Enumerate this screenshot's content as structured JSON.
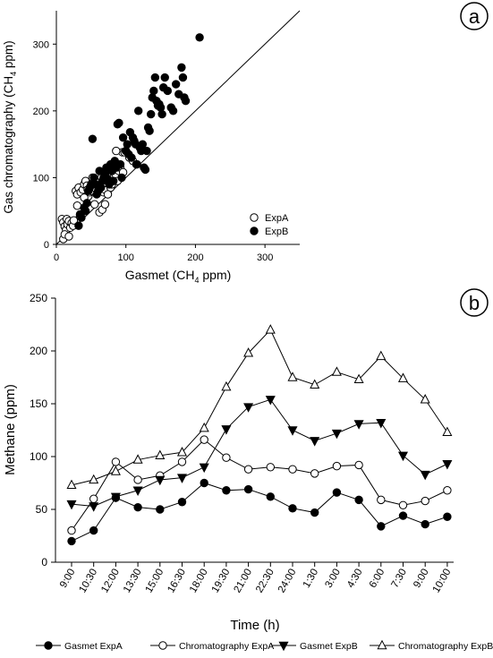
{
  "chart_data": [
    {
      "type": "scatter",
      "panel_label": "a",
      "xlabel": "Gasmet (CH",
      "xlabel_sub": "4",
      "xlabel_end": " ppm)",
      "ylabel": "Gas chromatography (CH",
      "ylabel_sub": "4",
      "ylabel_end": " ppm)",
      "xlim": [
        0,
        350
      ],
      "ylim": [
        0,
        350
      ],
      "x_ticks": [
        0,
        100,
        200,
        300
      ],
      "y_ticks": [
        0,
        100,
        200,
        300
      ],
      "reference_line": [
        [
          0,
          0
        ],
        [
          350,
          350
        ]
      ],
      "legend_position": "bottom-right",
      "series": [
        {
          "name": "ExpA",
          "marker": "open-circle",
          "points": [
            [
              8,
              38
            ],
            [
              10,
              33
            ],
            [
              12,
              27
            ],
            [
              14,
              22
            ],
            [
              15,
              38
            ],
            [
              16,
              30
            ],
            [
              18,
              35
            ],
            [
              20,
              25
            ],
            [
              22,
              32
            ],
            [
              24,
              28
            ],
            [
              25,
              36
            ],
            [
              10,
              8
            ],
            [
              12,
              15
            ],
            [
              18,
              12
            ],
            [
              28,
              80
            ],
            [
              30,
              75
            ],
            [
              32,
              85
            ],
            [
              35,
              78
            ],
            [
              38,
              82
            ],
            [
              40,
              90
            ],
            [
              42,
              95
            ],
            [
              44,
              88
            ],
            [
              46,
              72
            ],
            [
              48,
              78
            ],
            [
              50,
              80
            ],
            [
              52,
              100
            ],
            [
              55,
              85
            ],
            [
              58,
              92
            ],
            [
              60,
              88
            ],
            [
              62,
              95
            ],
            [
              65,
              100
            ],
            [
              68,
              78
            ],
            [
              70,
              82
            ],
            [
              72,
              92
            ],
            [
              75,
              98
            ],
            [
              78,
              85
            ],
            [
              80,
              90
            ],
            [
              82,
              100
            ],
            [
              85,
              105
            ],
            [
              88,
              95
            ],
            [
              90,
              110
            ],
            [
              92,
              115
            ],
            [
              95,
              138
            ],
            [
              98,
              138
            ],
            [
              100,
              140
            ],
            [
              105,
              130
            ],
            [
              110,
              125
            ],
            [
              115,
              120
            ],
            [
              30,
              58
            ],
            [
              34,
              42
            ],
            [
              62,
              48
            ],
            [
              66,
              52
            ],
            [
              70,
              60
            ],
            [
              74,
              75
            ],
            [
              86,
              140
            ],
            [
              96,
              108
            ],
            [
              40,
              70
            ],
            [
              55,
              60
            ],
            [
              45,
              82
            ]
          ]
        },
        {
          "name": "ExpB",
          "marker": "filled-circle",
          "points": [
            [
              32,
              28
            ],
            [
              34,
              45
            ],
            [
              36,
              40
            ],
            [
              40,
              55
            ],
            [
              42,
              50
            ],
            [
              44,
              62
            ],
            [
              46,
              80
            ],
            [
              48,
              85
            ],
            [
              50,
              90
            ],
            [
              52,
              158
            ],
            [
              54,
              100
            ],
            [
              56,
              90
            ],
            [
              58,
              75
            ],
            [
              60,
              80
            ],
            [
              62,
              110
            ],
            [
              64,
              85
            ],
            [
              66,
              95
            ],
            [
              68,
              100
            ],
            [
              70,
              105
            ],
            [
              72,
              115
            ],
            [
              74,
              98
            ],
            [
              76,
              90
            ],
            [
              78,
              120
            ],
            [
              80,
              110
            ],
            [
              82,
              95
            ],
            [
              84,
              125
            ],
            [
              86,
              115
            ],
            [
              88,
              180
            ],
            [
              90,
              182
            ],
            [
              92,
              120
            ],
            [
              94,
              100
            ],
            [
              96,
              160
            ],
            [
              100,
              140
            ],
            [
              102,
              150
            ],
            [
              104,
              135
            ],
            [
              106,
              168
            ],
            [
              108,
              130
            ],
            [
              110,
              160
            ],
            [
              112,
              155
            ],
            [
              114,
              150
            ],
            [
              116,
              120
            ],
            [
              118,
              200
            ],
            [
              120,
              145
            ],
            [
              122,
              140
            ],
            [
              124,
              150
            ],
            [
              126,
              115
            ],
            [
              128,
              112
            ],
            [
              130,
              140
            ],
            [
              132,
              175
            ],
            [
              134,
              170
            ],
            [
              136,
              195
            ],
            [
              138,
              220
            ],
            [
              140,
              230
            ],
            [
              142,
              250
            ],
            [
              144,
              215
            ],
            [
              146,
              208
            ],
            [
              148,
              210
            ],
            [
              150,
              205
            ],
            [
              152,
              195
            ],
            [
              154,
              235
            ],
            [
              156,
              250
            ],
            [
              160,
              230
            ],
            [
              165,
              205
            ],
            [
              168,
              200
            ],
            [
              172,
              240
            ],
            [
              176,
              225
            ],
            [
              180,
              265
            ],
            [
              182,
              250
            ],
            [
              184,
              220
            ],
            [
              186,
              215
            ],
            [
              206,
              310
            ]
          ]
        }
      ]
    },
    {
      "type": "line",
      "panel_label": "b",
      "xlabel": "Time (h)",
      "ylabel": "Methane (ppm)",
      "ylim": [
        0,
        250
      ],
      "y_ticks": [
        0,
        50,
        100,
        150,
        200,
        250
      ],
      "categories": [
        "9:00",
        "10:30",
        "12:00",
        "13:30",
        "15:00",
        "16:30",
        "18:00",
        "19:30",
        "21:00",
        "22:30",
        "24:00",
        "1:30",
        "3:00",
        "4:30",
        "6:00",
        "7:30",
        "9:00",
        "10:00"
      ],
      "legend_position": "bottom",
      "series": [
        {
          "name": "Gasmet ExpA",
          "marker": "filled-circle",
          "values": [
            20,
            30,
            61,
            52,
            50,
            57,
            75,
            68,
            69,
            62,
            51,
            47,
            66,
            59,
            34,
            44,
            36,
            43
          ]
        },
        {
          "name": "Chromatography ExpA",
          "marker": "open-circle",
          "values": [
            30,
            60,
            95,
            78,
            82,
            95,
            116,
            99,
            88,
            90,
            88,
            84,
            91,
            92,
            59,
            54,
            58,
            68
          ]
        },
        {
          "name": "Gasmet ExpB",
          "marker": "filled-triangle-down",
          "values": [
            55,
            53,
            62,
            68,
            78,
            80,
            90,
            126,
            147,
            154,
            125,
            115,
            122,
            131,
            132,
            101,
            83,
            93
          ]
        },
        {
          "name": "Chromatography ExpB",
          "marker": "open-triangle-up",
          "values": [
            73,
            78,
            86,
            97,
            101,
            104,
            127,
            166,
            198,
            220,
            175,
            168,
            180,
            173,
            195,
            174,
            154,
            123
          ]
        }
      ]
    }
  ]
}
